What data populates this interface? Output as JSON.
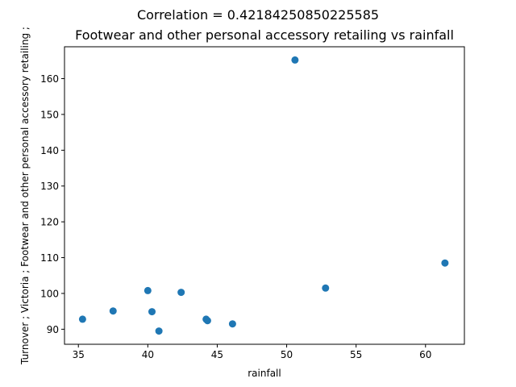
{
  "chart_data": {
    "type": "scatter",
    "suptitle": "Correlation = 0.42184250850225585",
    "title": "Footwear and other personal accessory retailing vs rainfall",
    "xlabel": "rainfall",
    "ylabel": "Turnover ;  Victoria ;  Footwear and other personal accessory retailing ;",
    "xlim": [
      34.0,
      62.8
    ],
    "ylim": [
      85.8,
      168.9
    ],
    "xticks": [
      35,
      40,
      45,
      50,
      55,
      60
    ],
    "yticks": [
      90,
      100,
      110,
      120,
      130,
      140,
      150,
      160
    ],
    "grid": false,
    "marker_color": "#1f77b4",
    "points": [
      {
        "x": 35.3,
        "y": 92.8
      },
      {
        "x": 37.5,
        "y": 95.1
      },
      {
        "x": 40.0,
        "y": 100.8
      },
      {
        "x": 40.3,
        "y": 94.9
      },
      {
        "x": 40.8,
        "y": 89.5
      },
      {
        "x": 42.4,
        "y": 100.3
      },
      {
        "x": 44.2,
        "y": 92.8
      },
      {
        "x": 44.3,
        "y": 92.4
      },
      {
        "x": 46.1,
        "y": 91.5
      },
      {
        "x": 50.6,
        "y": 165.2
      },
      {
        "x": 52.8,
        "y": 101.5
      },
      {
        "x": 61.4,
        "y": 108.5
      }
    ]
  }
}
